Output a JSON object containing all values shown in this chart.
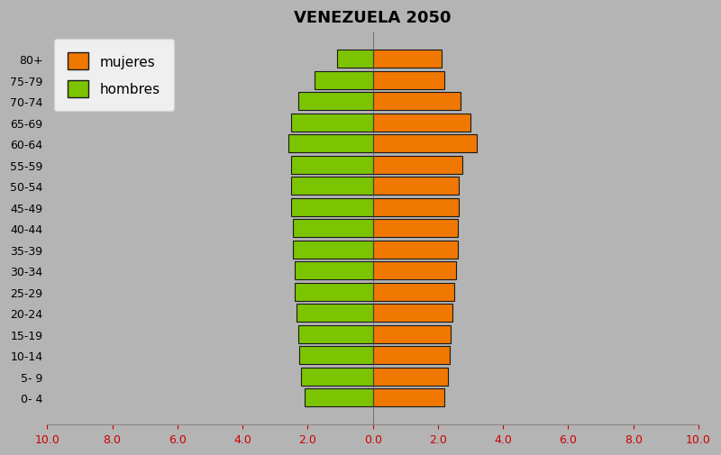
{
  "title": "VENEZUELA 2050",
  "age_groups": [
    "0- 4",
    "5- 9",
    "10-14",
    "15-19",
    "20-24",
    "25-29",
    "30-34",
    "35-39",
    "40-44",
    "45-49",
    "50-54",
    "55-59",
    "60-64",
    "65-69",
    "70-74",
    "75-79",
    "80+"
  ],
  "hombres": [
    2.1,
    2.2,
    2.25,
    2.3,
    2.35,
    2.4,
    2.4,
    2.45,
    2.45,
    2.5,
    2.5,
    2.5,
    2.6,
    2.5,
    2.3,
    1.8,
    1.1
  ],
  "mujeres": [
    2.2,
    2.3,
    2.35,
    2.4,
    2.45,
    2.5,
    2.55,
    2.6,
    2.6,
    2.65,
    2.65,
    2.75,
    3.2,
    3.0,
    2.7,
    2.2,
    2.1
  ],
  "hombres_color": "#7dc400",
  "mujeres_color": "#f07800",
  "background_color": "#b4b4b4",
  "xlim": [
    -10,
    10
  ],
  "xticks": [
    -10,
    -8,
    -6,
    -4,
    -2,
    0,
    2,
    4,
    6,
    8,
    10
  ],
  "xticklabels": [
    "10.0",
    "8.0",
    "6.0",
    "4.0",
    "2.0",
    "0.0",
    "2.0",
    "4.0",
    "6.0",
    "8.0",
    "10.0"
  ],
  "legend_mujeres": "mujeres",
  "legend_hombres": "hombres",
  "edgecolor": "#1a1a1a",
  "bar_height": 0.85,
  "xtick_color": "#cc0000"
}
